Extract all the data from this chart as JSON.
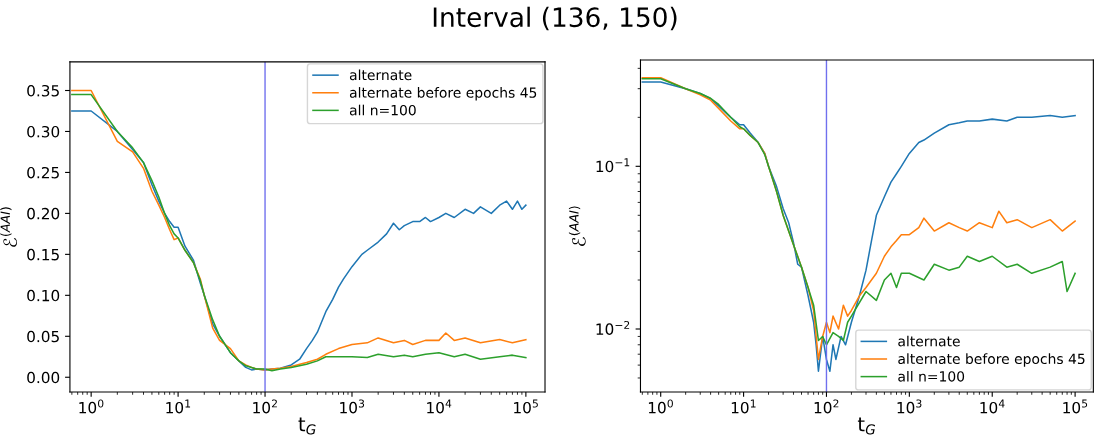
{
  "chart_data": [
    {
      "type": "line",
      "title": "Interval (136, 150)",
      "xlabel": "t$_{G}$",
      "ylabel": "ℰ$^{(AAI)}$",
      "log": "x",
      "legend": "top right",
      "grid": false,
      "xlim": [
        0.57,
        166000
      ],
      "xticks": [
        {
          "value": 1,
          "label": "10$^{0}$"
        },
        {
          "value": 10,
          "label": "10$^{1}$"
        },
        {
          "value": 100,
          "label": "10$^{2}$"
        },
        {
          "value": 1000,
          "label": "10$^{3}$"
        },
        {
          "value": 10000,
          "label": "10$^{4}$"
        },
        {
          "value": 100000,
          "label": "10$^{5}$"
        }
      ],
      "ylim": [
        -0.018,
        0.385
      ],
      "yticks": [
        {
          "value": 0,
          "label": "0.00"
        },
        {
          "value": 0.05,
          "label": "0.05"
        },
        {
          "value": 0.1,
          "label": "0.10"
        },
        {
          "value": 0.15,
          "label": "0.15"
        },
        {
          "value": 0.2,
          "label": "0.20"
        },
        {
          "value": 0.25,
          "label": "0.25"
        },
        {
          "value": 0.3,
          "label": "0.30"
        },
        {
          "value": 0.35,
          "label": "0.35"
        }
      ],
      "ref_lines": [
        {
          "axis": "x",
          "value": 100,
          "color": "#7070ee"
        }
      ],
      "series": [
        {
          "name": "alternate",
          "color": "#1f77b4",
          "x": [
            0.6,
            1,
            2,
            3,
            4,
            5,
            6,
            7,
            8,
            9,
            10,
            12,
            15,
            18,
            20,
            25,
            30,
            40,
            50,
            60,
            70,
            80,
            100,
            120,
            150,
            200,
            250,
            300,
            350,
            400,
            500,
            600,
            700,
            800,
            1000,
            1300,
            1500,
            2000,
            2500,
            3000,
            3500,
            4000,
            5000,
            6000,
            7000,
            8000,
            10000,
            12000,
            15000,
            20000,
            25000,
            30000,
            40000,
            50000,
            60000,
            70000,
            80000,
            90000,
            100000
          ],
          "values": [
            0.325,
            0.325,
            0.3,
            0.278,
            0.262,
            0.235,
            0.215,
            0.2,
            0.19,
            0.183,
            0.183,
            0.16,
            0.143,
            0.115,
            0.1,
            0.065,
            0.05,
            0.03,
            0.02,
            0.012,
            0.009,
            0.01,
            0.009,
            0.01,
            0.011,
            0.015,
            0.022,
            0.035,
            0.045,
            0.055,
            0.08,
            0.095,
            0.11,
            0.12,
            0.135,
            0.15,
            0.155,
            0.165,
            0.175,
            0.188,
            0.18,
            0.185,
            0.19,
            0.19,
            0.195,
            0.19,
            0.195,
            0.2,
            0.195,
            0.205,
            0.2,
            0.208,
            0.2,
            0.21,
            0.215,
            0.205,
            0.215,
            0.205,
            0.21
          ]
        },
        {
          "name": "alternate before epochs 45",
          "color": "#ff7f0e",
          "x": [
            0.6,
            1,
            2,
            3,
            4,
            5,
            6,
            7,
            8,
            9,
            10,
            12,
            15,
            18,
            20,
            25,
            30,
            40,
            50,
            60,
            70,
            80,
            100,
            120,
            150,
            200,
            300,
            400,
            500,
            700,
            1000,
            1500,
            2000,
            3000,
            4000,
            5000,
            7000,
            10000,
            12000,
            15000,
            20000,
            30000,
            50000,
            70000,
            100000
          ],
          "values": [
            0.35,
            0.35,
            0.288,
            0.275,
            0.255,
            0.227,
            0.21,
            0.195,
            0.18,
            0.168,
            0.17,
            0.155,
            0.14,
            0.12,
            0.1,
            0.06,
            0.045,
            0.035,
            0.02,
            0.015,
            0.012,
            0.01,
            0.009,
            0.01,
            0.011,
            0.013,
            0.018,
            0.022,
            0.028,
            0.035,
            0.04,
            0.042,
            0.048,
            0.042,
            0.045,
            0.04,
            0.045,
            0.045,
            0.054,
            0.045,
            0.048,
            0.042,
            0.046,
            0.042,
            0.046
          ]
        },
        {
          "name": "all n=100",
          "color": "#2ca02c",
          "x": [
            0.6,
            1,
            2,
            3,
            4,
            5,
            6,
            7,
            8,
            9,
            10,
            12,
            15,
            18,
            20,
            25,
            30,
            40,
            50,
            60,
            70,
            80,
            100,
            120,
            150,
            200,
            300,
            400,
            500,
            700,
            1000,
            1500,
            2000,
            3000,
            4000,
            5000,
            7000,
            10000,
            15000,
            20000,
            30000,
            50000,
            70000,
            100000
          ],
          "values": [
            0.345,
            0.345,
            0.3,
            0.28,
            0.262,
            0.24,
            0.22,
            0.2,
            0.185,
            0.175,
            0.17,
            0.155,
            0.14,
            0.118,
            0.1,
            0.07,
            0.05,
            0.03,
            0.02,
            0.014,
            0.012,
            0.01,
            0.01,
            0.008,
            0.01,
            0.012,
            0.016,
            0.02,
            0.025,
            0.025,
            0.025,
            0.024,
            0.028,
            0.025,
            0.027,
            0.025,
            0.028,
            0.03,
            0.025,
            0.028,
            0.022,
            0.025,
            0.027,
            0.024
          ]
        }
      ]
    },
    {
      "type": "line",
      "xlabel": "t$_{G}$",
      "ylabel": "ℰ$^{(AAI)}$",
      "log": "xy",
      "legend": "bottom right",
      "grid": false,
      "xlim": [
        0.57,
        166000
      ],
      "xticks": [
        {
          "value": 1,
          "label": "10$^{0}$"
        },
        {
          "value": 10,
          "label": "10$^{1}$"
        },
        {
          "value": 100,
          "label": "10$^{2}$"
        },
        {
          "value": 1000,
          "label": "10$^{3}$"
        },
        {
          "value": 10000,
          "label": "10$^{4}$"
        },
        {
          "value": 100000,
          "label": "10$^{5}$"
        }
      ],
      "ylim": [
        0.0041,
        0.45
      ],
      "yticks": [
        {
          "value": 0.01,
          "label": "10$^{−2}$"
        },
        {
          "value": 0.1,
          "label": "10$^{−1}$"
        }
      ],
      "ref_lines": [
        {
          "axis": "x",
          "value": 100,
          "color": "#7070ee"
        }
      ],
      "series": [
        {
          "name": "alternate",
          "color": "#1f77b4",
          "x": [
            0.6,
            1,
            2,
            3,
            4,
            5,
            7,
            9,
            10,
            12,
            15,
            18,
            20,
            25,
            30,
            35,
            40,
            45,
            50,
            60,
            70,
            75,
            80,
            90,
            100,
            110,
            120,
            130,
            150,
            170,
            200,
            250,
            300,
            350,
            400,
            500,
            600,
            700,
            800,
            1000,
            1300,
            1500,
            2000,
            3000,
            4000,
            5000,
            7000,
            10000,
            15000,
            20000,
            30000,
            50000,
            70000,
            100000
          ],
          "values": [
            0.33,
            0.33,
            0.3,
            0.28,
            0.26,
            0.235,
            0.2,
            0.18,
            0.18,
            0.16,
            0.14,
            0.12,
            0.1,
            0.075,
            0.055,
            0.045,
            0.034,
            0.025,
            0.024,
            0.016,
            0.011,
            0.008,
            0.0055,
            0.009,
            0.0065,
            0.0055,
            0.008,
            0.0065,
            0.009,
            0.008,
            0.011,
            0.016,
            0.023,
            0.035,
            0.05,
            0.065,
            0.08,
            0.09,
            0.1,
            0.12,
            0.14,
            0.145,
            0.16,
            0.18,
            0.185,
            0.19,
            0.19,
            0.195,
            0.19,
            0.2,
            0.2,
            0.205,
            0.2,
            0.205
          ]
        },
        {
          "name": "alternate before epochs 45",
          "color": "#ff7f0e",
          "x": [
            0.6,
            1,
            2,
            3,
            4,
            5,
            7,
            9,
            10,
            12,
            15,
            18,
            20,
            25,
            30,
            40,
            50,
            60,
            70,
            80,
            90,
            100,
            110,
            120,
            140,
            160,
            180,
            200,
            250,
            300,
            400,
            500,
            600,
            700,
            800,
            1000,
            1300,
            1500,
            2000,
            3000,
            4000,
            5000,
            7000,
            10000,
            12000,
            15000,
            20000,
            30000,
            50000,
            70000,
            100000
          ],
          "values": [
            0.35,
            0.35,
            0.3,
            0.275,
            0.255,
            0.227,
            0.19,
            0.17,
            0.17,
            0.155,
            0.14,
            0.12,
            0.1,
            0.07,
            0.05,
            0.033,
            0.024,
            0.018,
            0.013,
            0.0065,
            0.009,
            0.011,
            0.0095,
            0.012,
            0.01,
            0.014,
            0.012,
            0.013,
            0.016,
            0.018,
            0.022,
            0.028,
            0.032,
            0.035,
            0.038,
            0.038,
            0.042,
            0.048,
            0.04,
            0.045,
            0.042,
            0.04,
            0.045,
            0.042,
            0.053,
            0.045,
            0.047,
            0.042,
            0.047,
            0.04,
            0.046
          ]
        },
        {
          "name": "all n=100",
          "color": "#2ca02c",
          "x": [
            0.6,
            1,
            2,
            3,
            4,
            5,
            7,
            9,
            10,
            12,
            15,
            18,
            20,
            25,
            30,
            40,
            50,
            60,
            70,
            80,
            90,
            100,
            120,
            140,
            160,
            180,
            200,
            300,
            400,
            500,
            600,
            700,
            800,
            1000,
            1500,
            2000,
            3000,
            4000,
            5000,
            7000,
            10000,
            15000,
            20000,
            30000,
            50000,
            70000,
            80000,
            100000
          ],
          "values": [
            0.345,
            0.345,
            0.3,
            0.28,
            0.262,
            0.24,
            0.2,
            0.175,
            0.17,
            0.155,
            0.14,
            0.118,
            0.1,
            0.07,
            0.05,
            0.033,
            0.024,
            0.018,
            0.014,
            0.0085,
            0.009,
            0.008,
            0.0095,
            0.009,
            0.0085,
            0.011,
            0.012,
            0.017,
            0.015,
            0.02,
            0.022,
            0.018,
            0.022,
            0.022,
            0.02,
            0.025,
            0.023,
            0.024,
            0.028,
            0.026,
            0.028,
            0.024,
            0.025,
            0.022,
            0.024,
            0.026,
            0.017,
            0.022
          ]
        }
      ]
    }
  ]
}
